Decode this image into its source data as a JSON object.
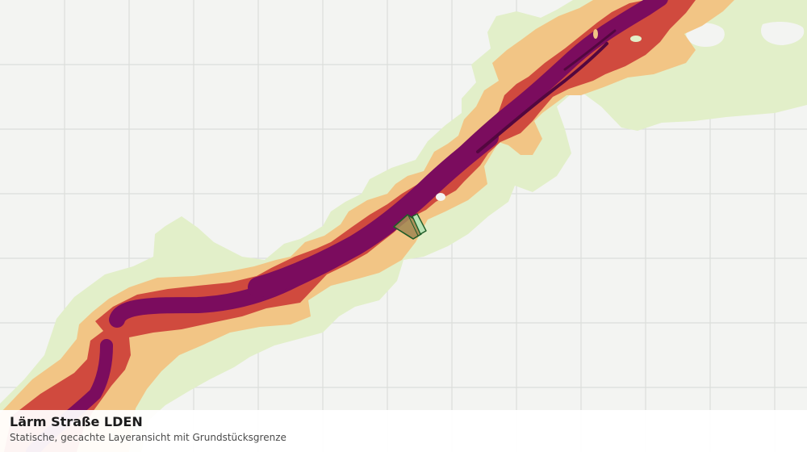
{
  "map": {
    "layer_title": "Lärm Straße LDEN",
    "layer_subtitle": "Statische, gecachte Layeransicht mit Grundstücksgrenze",
    "colors": {
      "background": "#f3f4f2",
      "grid": "#dcdedb",
      "noise_band_1": "#e2efc9",
      "noise_band_2": "#f2c585",
      "noise_band_3": "#d04a3e",
      "noise_band_4": "#7b0c5e",
      "noise_band_5": "#53073f",
      "parcel_fill": "#a58a55",
      "parcel_outline": "#1f5c28",
      "parcel_strip": "#b9e3b5"
    }
  }
}
